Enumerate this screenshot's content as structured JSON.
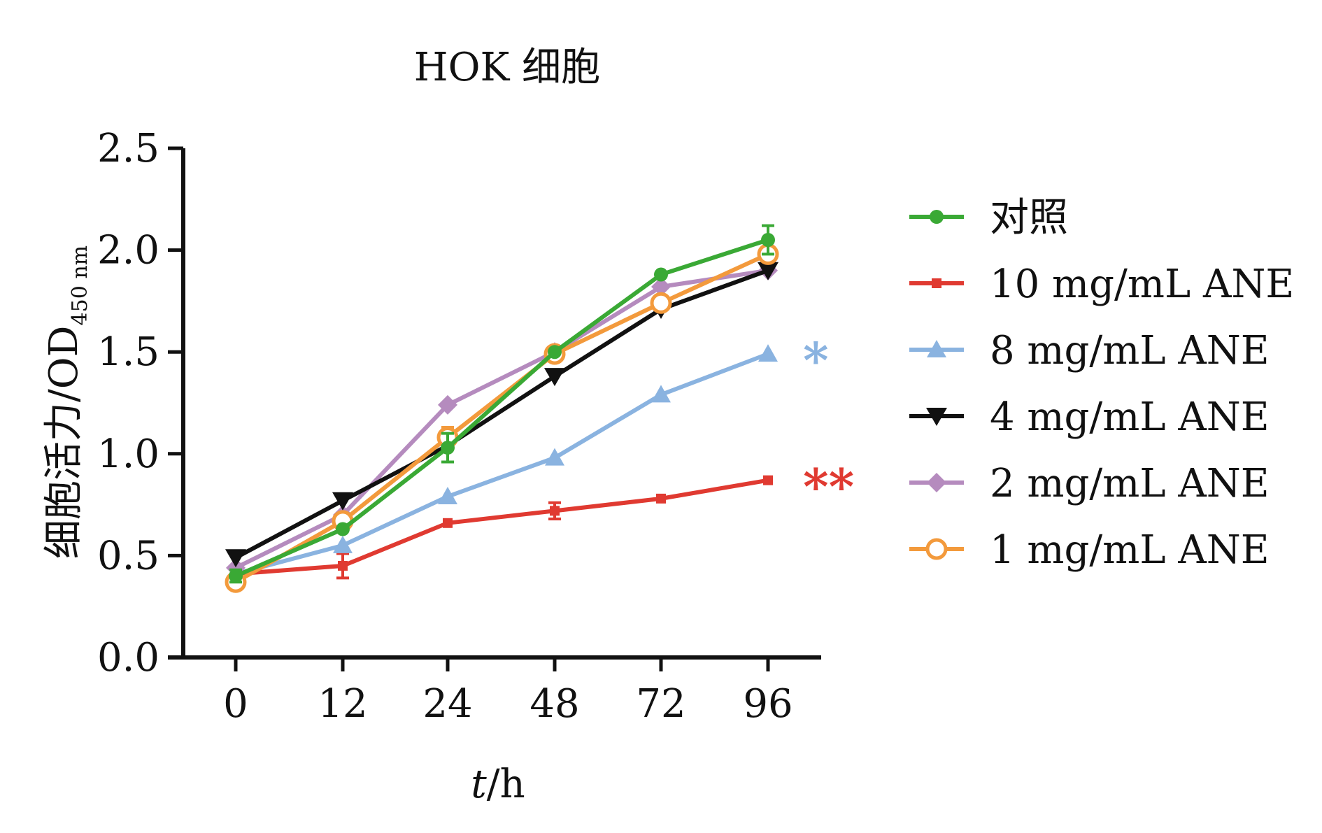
{
  "chart_data": {
    "type": "line",
    "title": "HOK 细胞",
    "xlabel_italic": "t",
    "xlabel_rest": "/h",
    "ylabel_main": "细胞活力/OD",
    "ylabel_sub": "450 nm",
    "categories": [
      "0",
      "12",
      "24",
      "48",
      "72",
      "96"
    ],
    "ylim": [
      0,
      2.5
    ],
    "yticks": [
      "0.0",
      "0.5",
      "1.0",
      "1.5",
      "2.0",
      "2.5"
    ],
    "grid": false,
    "legend_position": "right",
    "series": [
      {
        "name": "对照",
        "color": "#3aa935",
        "marker": "circle",
        "values": [
          0.4,
          0.63,
          1.03,
          1.5,
          1.88,
          2.05
        ],
        "errors": [
          0.03,
          0.02,
          0.07,
          0.02,
          0.02,
          0.07
        ]
      },
      {
        "name": "10 mg/mL ANE",
        "color": "#e03a31",
        "marker": "square",
        "values": [
          0.41,
          0.45,
          0.66,
          0.72,
          0.78,
          0.87
        ],
        "errors": [
          0.02,
          0.06,
          0.02,
          0.04,
          0.02,
          0.01
        ]
      },
      {
        "name": "8 mg/mL ANE",
        "color": "#8ab3e0",
        "marker": "triangle-up",
        "values": [
          0.41,
          0.55,
          0.79,
          0.98,
          1.29,
          1.49
        ],
        "errors": [
          0.02,
          0.02,
          0.02,
          0.02,
          0.02,
          0.02
        ]
      },
      {
        "name": "4 mg/mL ANE",
        "color": "#111111",
        "marker": "triangle-down",
        "values": [
          0.49,
          0.77,
          1.04,
          1.38,
          1.71,
          1.9
        ],
        "errors": [
          0.02,
          0.02,
          0.02,
          0.02,
          0.02,
          0.02
        ]
      },
      {
        "name": "2 mg/mL ANE",
        "color": "#b58bbe",
        "marker": "diamond",
        "values": [
          0.44,
          0.7,
          1.24,
          1.5,
          1.82,
          1.9
        ],
        "errors": [
          0.02,
          0.02,
          0.02,
          0.02,
          0.02,
          0.02
        ]
      },
      {
        "name": "1 mg/mL ANE",
        "color": "#f39a3c",
        "marker": "circle-open",
        "values": [
          0.37,
          0.67,
          1.08,
          1.49,
          1.74,
          1.98
        ],
        "errors": [
          0.02,
          0.02,
          0.05,
          0.02,
          0.02,
          0.03
        ]
      }
    ],
    "annotations": [
      {
        "text": "*",
        "series": "8 mg/mL ANE",
        "color": "#8ab3e0"
      },
      {
        "text": "**",
        "series": "10 mg/mL ANE",
        "color": "#e03a31"
      }
    ]
  }
}
